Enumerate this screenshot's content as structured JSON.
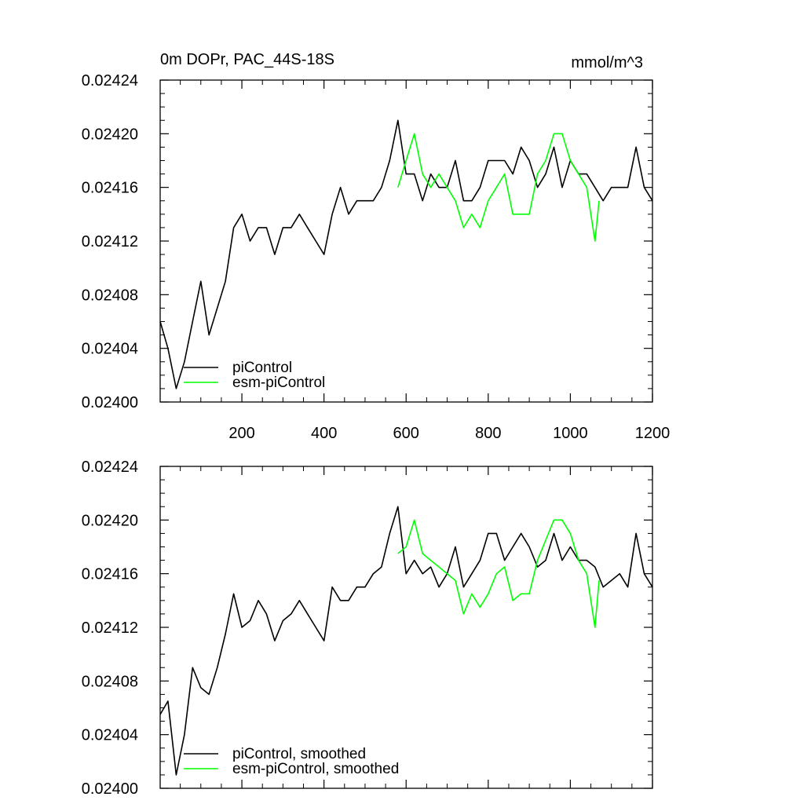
{
  "chart_data": [
    {
      "type": "line",
      "title": "0m DOPr, PAC_44S-18S",
      "units": "mmol/m^3",
      "xlim": [
        1,
        1200
      ],
      "ylim": [
        0.024,
        0.02424
      ],
      "x_ticks": [
        "200",
        "400",
        "600",
        "800",
        "1000",
        "1200"
      ],
      "y_ticks": [
        "0.02400",
        "0.02404",
        "0.02408",
        "0.02412",
        "0.02416",
        "0.02420",
        "0.02424"
      ],
      "grid": false,
      "legend_position": "bottom-left",
      "series": [
        {
          "name": "piControl",
          "color": "#000000",
          "x": [
            1,
            20,
            40,
            60,
            80,
            100,
            120,
            140,
            160,
            180,
            200,
            220,
            240,
            260,
            280,
            300,
            320,
            340,
            360,
            380,
            400,
            420,
            440,
            460,
            480,
            500,
            520,
            540,
            560,
            580,
            600,
            620,
            640,
            660,
            680,
            700,
            720,
            740,
            760,
            780,
            800,
            820,
            840,
            860,
            880,
            900,
            920,
            940,
            960,
            980,
            1000,
            1020,
            1040,
            1060,
            1080,
            1100,
            1120,
            1140,
            1160,
            1180,
            1200
          ],
          "values": [
            0.02406,
            0.02404,
            0.02401,
            0.02403,
            0.02406,
            0.02409,
            0.02405,
            0.02407,
            0.02409,
            0.02413,
            0.02414,
            0.02412,
            0.02413,
            0.02413,
            0.02411,
            0.02413,
            0.02413,
            0.02414,
            0.02413,
            0.02412,
            0.02411,
            0.02414,
            0.02416,
            0.02414,
            0.02415,
            0.02415,
            0.02415,
            0.02416,
            0.02418,
            0.02421,
            0.02417,
            0.02417,
            0.02415,
            0.02417,
            0.02416,
            0.02416,
            0.02418,
            0.02415,
            0.02415,
            0.02416,
            0.02418,
            0.02418,
            0.02418,
            0.02417,
            0.02419,
            0.02418,
            0.02416,
            0.02417,
            0.02419,
            0.02416,
            0.02418,
            0.02417,
            0.02417,
            0.02416,
            0.02415,
            0.02416,
            0.02416,
            0.02416,
            0.02419,
            0.02416,
            0.02415
          ]
        },
        {
          "name": "esm-piControl",
          "color": "#00ff00",
          "x": [
            580,
            600,
            620,
            640,
            660,
            680,
            700,
            720,
            740,
            760,
            780,
            800,
            820,
            840,
            860,
            880,
            900,
            920,
            940,
            960,
            980,
            1000,
            1020,
            1040,
            1060,
            1070
          ],
          "values": [
            0.02416,
            0.02418,
            0.0242,
            0.02417,
            0.02416,
            0.02417,
            0.02416,
            0.02415,
            0.02413,
            0.02414,
            0.02413,
            0.02415,
            0.02416,
            0.02417,
            0.02414,
            0.02414,
            0.02414,
            0.02417,
            0.02418,
            0.0242,
            0.0242,
            0.02418,
            0.02417,
            0.02416,
            0.02412,
            0.02415
          ]
        }
      ]
    },
    {
      "type": "line",
      "xlim": [
        1,
        1200
      ],
      "ylim": [
        0.024,
        0.02424
      ],
      "y_ticks": [
        "0.02400",
        "0.02404",
        "0.02408",
        "0.02412",
        "0.02416",
        "0.02420",
        "0.02424"
      ],
      "grid": false,
      "legend_position": "bottom-left",
      "series": [
        {
          "name": "piControl, smoothed",
          "color": "#000000",
          "x": [
            1,
            20,
            40,
            60,
            80,
            100,
            120,
            140,
            160,
            180,
            200,
            220,
            240,
            260,
            280,
            300,
            320,
            340,
            360,
            380,
            400,
            420,
            440,
            460,
            480,
            500,
            520,
            540,
            560,
            580,
            600,
            620,
            640,
            660,
            680,
            700,
            720,
            740,
            760,
            780,
            800,
            820,
            840,
            860,
            880,
            900,
            920,
            940,
            960,
            980,
            1000,
            1020,
            1040,
            1060,
            1080,
            1100,
            1120,
            1140,
            1160,
            1180,
            1200
          ],
          "values": [
            0.024055,
            0.024065,
            0.02401,
            0.02404,
            0.02409,
            0.024075,
            0.02407,
            0.02409,
            0.024115,
            0.024145,
            0.02412,
            0.024125,
            0.02414,
            0.02413,
            0.02411,
            0.024125,
            0.02413,
            0.02414,
            0.02413,
            0.02412,
            0.02411,
            0.02415,
            0.02414,
            0.02414,
            0.02415,
            0.02415,
            0.02416,
            0.024165,
            0.02419,
            0.02421,
            0.02416,
            0.02417,
            0.02416,
            0.024165,
            0.02415,
            0.02416,
            0.02418,
            0.02415,
            0.02416,
            0.02417,
            0.02419,
            0.02419,
            0.02417,
            0.02418,
            0.02419,
            0.02418,
            0.024165,
            0.02417,
            0.02419,
            0.02417,
            0.02418,
            0.02417,
            0.02417,
            0.024165,
            0.02415,
            0.024155,
            0.02416,
            0.02415,
            0.02419,
            0.02416,
            0.02415
          ]
        },
        {
          "name": "esm-piControl, smoothed",
          "color": "#00ff00",
          "x": [
            580,
            600,
            620,
            640,
            660,
            680,
            700,
            720,
            740,
            760,
            780,
            800,
            820,
            840,
            860,
            880,
            900,
            920,
            940,
            960,
            980,
            1000,
            1020,
            1040,
            1060,
            1070
          ],
          "values": [
            0.024175,
            0.02418,
            0.0242,
            0.024175,
            0.02417,
            0.024165,
            0.02416,
            0.024155,
            0.02413,
            0.024145,
            0.024135,
            0.024145,
            0.02416,
            0.024165,
            0.02414,
            0.024145,
            0.024145,
            0.02417,
            0.024185,
            0.0242,
            0.0242,
            0.02419,
            0.02417,
            0.02416,
            0.02412,
            0.024155
          ]
        }
      ]
    }
  ]
}
